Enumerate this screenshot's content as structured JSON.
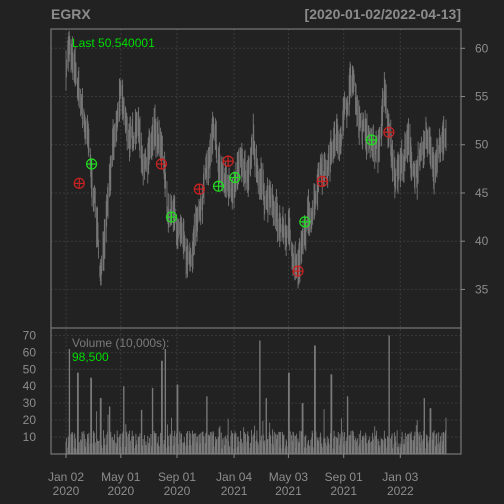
{
  "header": {
    "symbol": "EGRX",
    "date_range": "[2020-01-02/2022-04-13]"
  },
  "colors": {
    "background": "#222222",
    "frame": "#888888",
    "grid": "#3a3a3a",
    "price_bars": "#777777",
    "volume_bars": "#7a7a7a",
    "axis_text": "#8c8c8c",
    "accent_green": "#00dd00",
    "marker_red": "#cc2222",
    "marker_green": "#22dd22"
  },
  "legend": {
    "last_label": "Last 50.540001",
    "volume_label": "Volume (10,000s):",
    "volume_value": "98,500"
  },
  "chart_data": [
    {
      "type": "line",
      "title": "EGRX",
      "subtitle": "[2020-01-02/2022-04-13]",
      "y_ticks": [
        "35",
        "40",
        "45",
        "50",
        "55",
        "60"
      ],
      "ylim": [
        31,
        62
      ],
      "x_ticks": [
        {
          "label": [
            "Jan 02",
            "2020"
          ],
          "date": "2020-01-02"
        },
        {
          "label": [
            "May 01",
            "2020"
          ],
          "date": "2020-05-01"
        },
        {
          "label": [
            "Sep 01",
            "2020"
          ],
          "date": "2020-09-01"
        },
        {
          "label": [
            "Jan 04",
            "2021"
          ],
          "date": "2021-01-04"
        },
        {
          "label": [
            "May 03",
            "2021"
          ],
          "date": "2021-05-03"
        },
        {
          "label": [
            "Sep 01",
            "2021"
          ],
          "date": "2021-09-01"
        },
        {
          "label": [
            "Jan 03",
            "2022"
          ],
          "date": "2022-01-03"
        }
      ],
      "x_range": [
        "2020-01-02",
        "2022-04-13"
      ],
      "price_anchors": [
        [
          "2020-01-02",
          58.5
        ],
        [
          "2020-01-08",
          60.0
        ],
        [
          "2020-01-20",
          57.5
        ],
        [
          "2020-02-05",
          54.0
        ],
        [
          "2020-02-20",
          50.0
        ],
        [
          "2020-02-27",
          46.0
        ],
        [
          "2020-03-05",
          44.5
        ],
        [
          "2020-03-12",
          40.0
        ],
        [
          "2020-03-19",
          36.0
        ],
        [
          "2020-03-25",
          40.0
        ],
        [
          "2020-04-02",
          45.0
        ],
        [
          "2020-04-09",
          48.0
        ],
        [
          "2020-04-20",
          51.0
        ],
        [
          "2020-05-01",
          55.0
        ],
        [
          "2020-05-12",
          52.0
        ],
        [
          "2020-05-26",
          50.0
        ],
        [
          "2020-06-05",
          53.0
        ],
        [
          "2020-06-20",
          48.0
        ],
        [
          "2020-07-01",
          49.0
        ],
        [
          "2020-07-15",
          51.0
        ],
        [
          "2020-08-01",
          48.5
        ],
        [
          "2020-08-12",
          43.0
        ],
        [
          "2020-08-25",
          42.5
        ],
        [
          "2020-09-10",
          40.0
        ],
        [
          "2020-09-25",
          37.5
        ],
        [
          "2020-10-12",
          41.0
        ],
        [
          "2020-10-26",
          45.0
        ],
        [
          "2020-11-09",
          48.0
        ],
        [
          "2020-11-20",
          51.0
        ],
        [
          "2020-12-01",
          48.0
        ],
        [
          "2020-12-15",
          46.0
        ],
        [
          "2020-12-29",
          45.5
        ],
        [
          "2021-01-08",
          47.0
        ],
        [
          "2021-01-20",
          47.5
        ],
        [
          "2021-02-05",
          46.0
        ],
        [
          "2021-02-15",
          50.0
        ],
        [
          "2021-02-26",
          47.0
        ],
        [
          "2021-03-12",
          45.0
        ],
        [
          "2021-03-26",
          44.0
        ],
        [
          "2021-04-09",
          42.0
        ],
        [
          "2021-04-23",
          41.0
        ],
        [
          "2021-05-07",
          40.5
        ],
        [
          "2021-05-17",
          38.0
        ],
        [
          "2021-05-24",
          37.0
        ],
        [
          "2021-06-01",
          39.0
        ],
        [
          "2021-06-14",
          42.0
        ],
        [
          "2021-06-28",
          44.0
        ],
        [
          "2021-07-12",
          48.0
        ],
        [
          "2021-07-26",
          47.5
        ],
        [
          "2021-08-09",
          50.0
        ],
        [
          "2021-08-23",
          51.0
        ],
        [
          "2021-09-07",
          54.0
        ],
        [
          "2021-09-20",
          57.0
        ],
        [
          "2021-10-04",
          53.0
        ],
        [
          "2021-10-18",
          51.0
        ],
        [
          "2021-11-01",
          50.0
        ],
        [
          "2021-11-15",
          49.0
        ],
        [
          "2021-11-29",
          55.0
        ],
        [
          "2021-12-10",
          51.0
        ],
        [
          "2021-12-24",
          47.0
        ],
        [
          "2022-01-07",
          48.0
        ],
        [
          "2022-01-21",
          50.0
        ],
        [
          "2022-02-04",
          47.0
        ],
        [
          "2022-02-18",
          48.0
        ],
        [
          "2022-03-04",
          51.0
        ],
        [
          "2022-03-18",
          48.0
        ],
        [
          "2022-04-01",
          50.0
        ],
        [
          "2022-04-13",
          50.5
        ]
      ],
      "markers": [
        {
          "date": "2020-01-31",
          "price": 46.0,
          "side": "sell"
        },
        {
          "date": "2020-02-27",
          "price": 48.0,
          "side": "buy"
        },
        {
          "date": "2020-07-29",
          "price": 48.0,
          "side": "sell"
        },
        {
          "date": "2020-08-20",
          "price": 42.5,
          "side": "buy"
        },
        {
          "date": "2020-10-20",
          "price": 45.4,
          "side": "sell"
        },
        {
          "date": "2020-12-01",
          "price": 45.7,
          "side": "buy"
        },
        {
          "date": "2020-12-22",
          "price": 48.3,
          "side": "sell"
        },
        {
          "date": "2021-01-06",
          "price": 46.6,
          "side": "buy"
        },
        {
          "date": "2021-05-24",
          "price": 36.9,
          "side": "sell"
        },
        {
          "date": "2021-06-08",
          "price": 42.0,
          "side": "buy"
        },
        {
          "date": "2021-07-16",
          "price": 46.2,
          "side": "sell"
        },
        {
          "date": "2021-11-01",
          "price": 50.5,
          "side": "buy"
        },
        {
          "date": "2021-12-09",
          "price": 51.3,
          "side": "sell"
        }
      ]
    },
    {
      "type": "bar",
      "title": "Volume (10,000s):",
      "y_ticks": [
        "10",
        "20",
        "30",
        "40",
        "50",
        "60",
        "70"
      ],
      "ylim": [
        0,
        72
      ],
      "last_value": "98,500",
      "typical_range": [
        3,
        14
      ],
      "spikes": [
        {
          "date": "2020-01-10",
          "value": 62
        },
        {
          "date": "2020-01-28",
          "value": 48
        },
        {
          "date": "2020-02-26",
          "value": 45
        },
        {
          "date": "2020-03-18",
          "value": 33
        },
        {
          "date": "2020-04-06",
          "value": 28
        },
        {
          "date": "2020-05-08",
          "value": 40
        },
        {
          "date": "2020-06-15",
          "value": 26
        },
        {
          "date": "2020-07-10",
          "value": 39
        },
        {
          "date": "2020-07-30",
          "value": 55
        },
        {
          "date": "2020-08-07",
          "value": 62
        },
        {
          "date": "2020-09-02",
          "value": 41
        },
        {
          "date": "2020-11-06",
          "value": 34
        },
        {
          "date": "2021-03-01",
          "value": 67
        },
        {
          "date": "2021-03-15",
          "value": 33
        },
        {
          "date": "2021-05-04",
          "value": 48
        },
        {
          "date": "2021-06-03",
          "value": 30
        },
        {
          "date": "2021-06-30",
          "value": 64
        },
        {
          "date": "2021-08-05",
          "value": 47
        },
        {
          "date": "2021-09-10",
          "value": 34
        },
        {
          "date": "2021-12-10",
          "value": 70
        },
        {
          "date": "2022-02-25",
          "value": 33
        },
        {
          "date": "2022-03-10",
          "value": 27
        }
      ]
    }
  ]
}
